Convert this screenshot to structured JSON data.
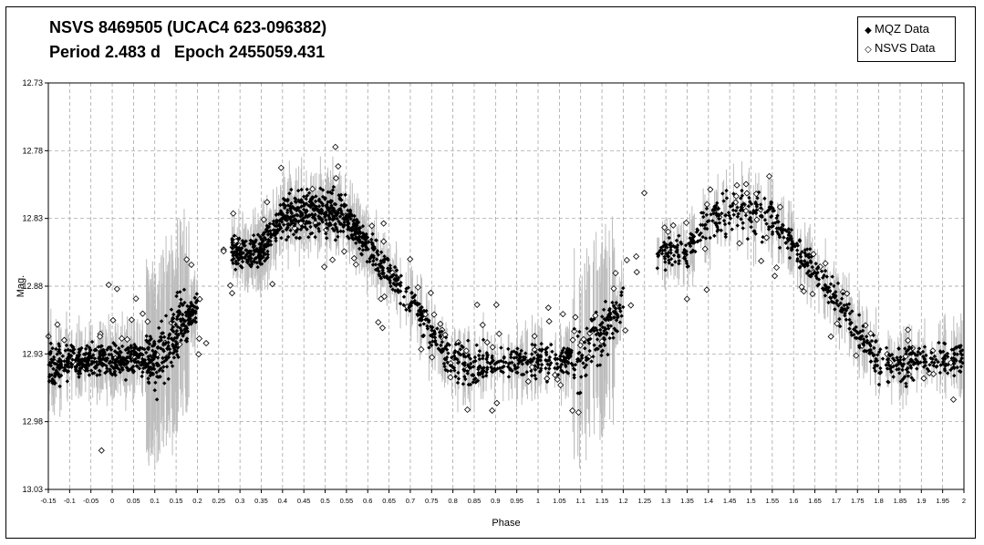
{
  "title": {
    "line1": "NSVS 8469505 (UCAC4 623-096382)",
    "line2": "Period 2.483 d   Epoch 2455059.431"
  },
  "legend": {
    "items": [
      {
        "label": "MQZ Data",
        "symbol": "filled-diamond",
        "color": "#000000"
      },
      {
        "label": "NSVS Data",
        "symbol": "open-diamond",
        "color": "#000000"
      }
    ],
    "position": "top-right"
  },
  "chart_data": {
    "type": "scatter",
    "xlabel": "Phase",
    "ylabel": "Mag.",
    "xlim": [
      -0.15,
      2.0
    ],
    "ylim": [
      13.03,
      12.73
    ],
    "y_inverted": true,
    "grid": true,
    "x_ticks": [
      "-0.15",
      "-0.1",
      "-0.05",
      "0",
      "0.05",
      "0.1",
      "0.15",
      "0.2",
      "0.25",
      "0.3",
      "0.35",
      "0.4",
      "0.45",
      "0.5",
      "0.55",
      "0.6",
      "0.65",
      "0.7",
      "0.75",
      "0.8",
      "0.85",
      "0.9",
      "0.95",
      "1",
      "1.05",
      "1.1",
      "1.15",
      "1.2",
      "1.25",
      "1.3",
      "1.35",
      "1.4",
      "1.45",
      "1.5",
      "1.55",
      "1.6",
      "1.65",
      "1.7",
      "1.75",
      "1.8",
      "1.85",
      "1.9",
      "1.95",
      "2"
    ],
    "y_ticks": [
      "12.73",
      "12.78",
      "12.83",
      "12.88",
      "12.93",
      "12.98",
      "13.03"
    ],
    "errorbar_color": "#bdbdbd",
    "series": [
      {
        "name": "MQZ Data",
        "marker": "filled-diamond",
        "color": "#000000",
        "light_curve_profile": {
          "phase": [
            0.0,
            0.05,
            0.1,
            0.15,
            0.2,
            0.25,
            0.3,
            0.35,
            0.4,
            0.45,
            0.5,
            0.55,
            0.6,
            0.65,
            0.7,
            0.75,
            0.8,
            0.85,
            0.9,
            0.95,
            1.0
          ],
          "mag": [
            12.935,
            12.935,
            12.935,
            12.915,
            12.895,
            12.86,
            12.855,
            12.855,
            12.83,
            12.825,
            12.825,
            12.83,
            12.85,
            12.87,
            12.89,
            12.915,
            12.935,
            12.94,
            12.935,
            12.935,
            12.935
          ]
        },
        "phase_coverage": [
          [
            -0.15,
            0.2
          ],
          [
            0.28,
            0.6
          ],
          [
            0.6,
            1.2
          ],
          [
            1.28,
            2.0
          ]
        ]
      },
      {
        "name": "NSVS Data",
        "marker": "open-diamond",
        "color": "#000000",
        "scatter_range_mag": [
          12.73,
          13.03
        ]
      }
    ]
  }
}
